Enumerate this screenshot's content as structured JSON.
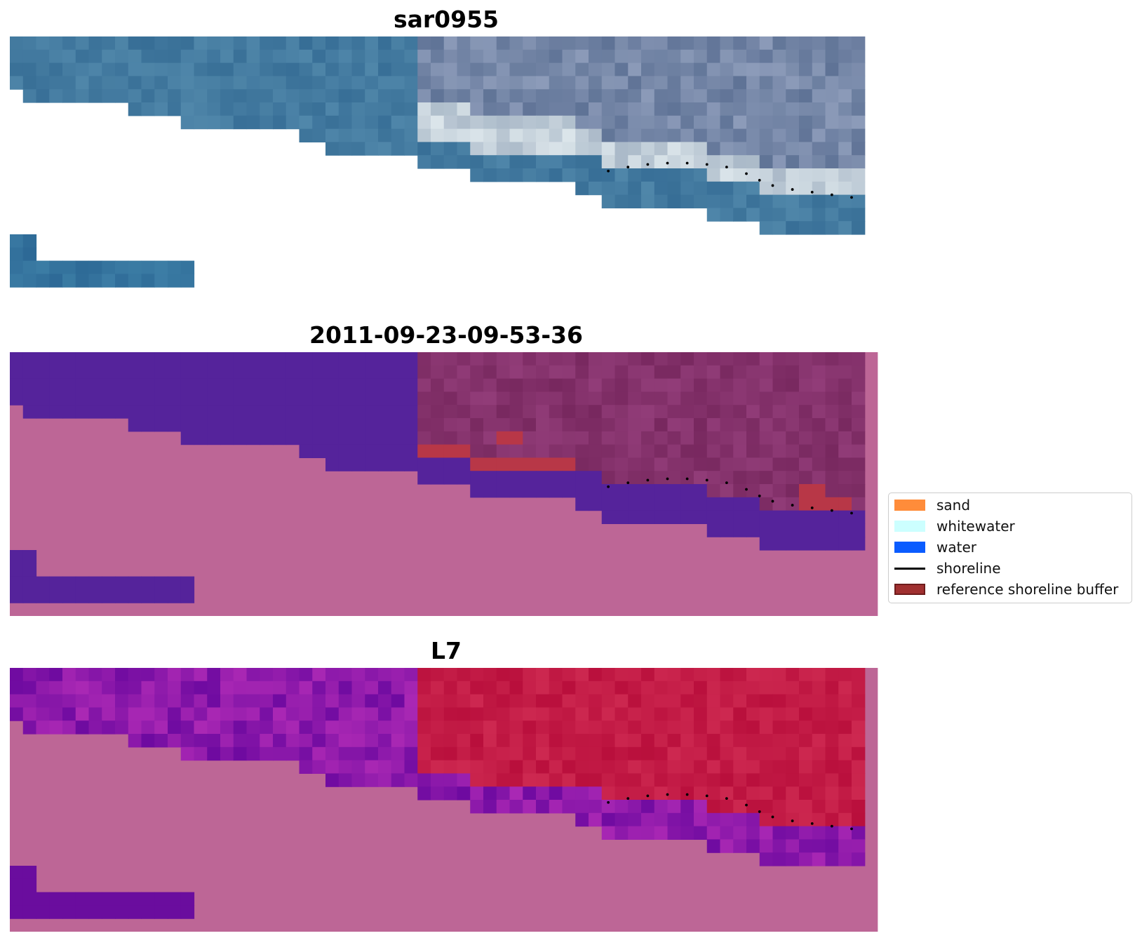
{
  "panels": [
    {
      "title": "sar0955"
    },
    {
      "title": "2011-09-23-09-53-36"
    },
    {
      "title": "L7"
    }
  ],
  "legend": {
    "items": [
      {
        "label": "sand",
        "color": "#ff8c3a",
        "kind": "patch"
      },
      {
        "label": "whitewater",
        "color": "#ccffff",
        "kind": "patch"
      },
      {
        "label": "water",
        "color": "#0a5cff",
        "kind": "patch"
      },
      {
        "label": "shoreline",
        "color": "#000000",
        "kind": "line"
      },
      {
        "label": "reference shoreline buffer",
        "color": "#a03030",
        "kind": "patch"
      }
    ]
  },
  "colors": {
    "background_mask": "#bd6696",
    "buffer": "#b83747",
    "water_class": "#55239b",
    "ndwi_water": "#6a0d9e",
    "ndwi_land": "#c0194a"
  }
}
